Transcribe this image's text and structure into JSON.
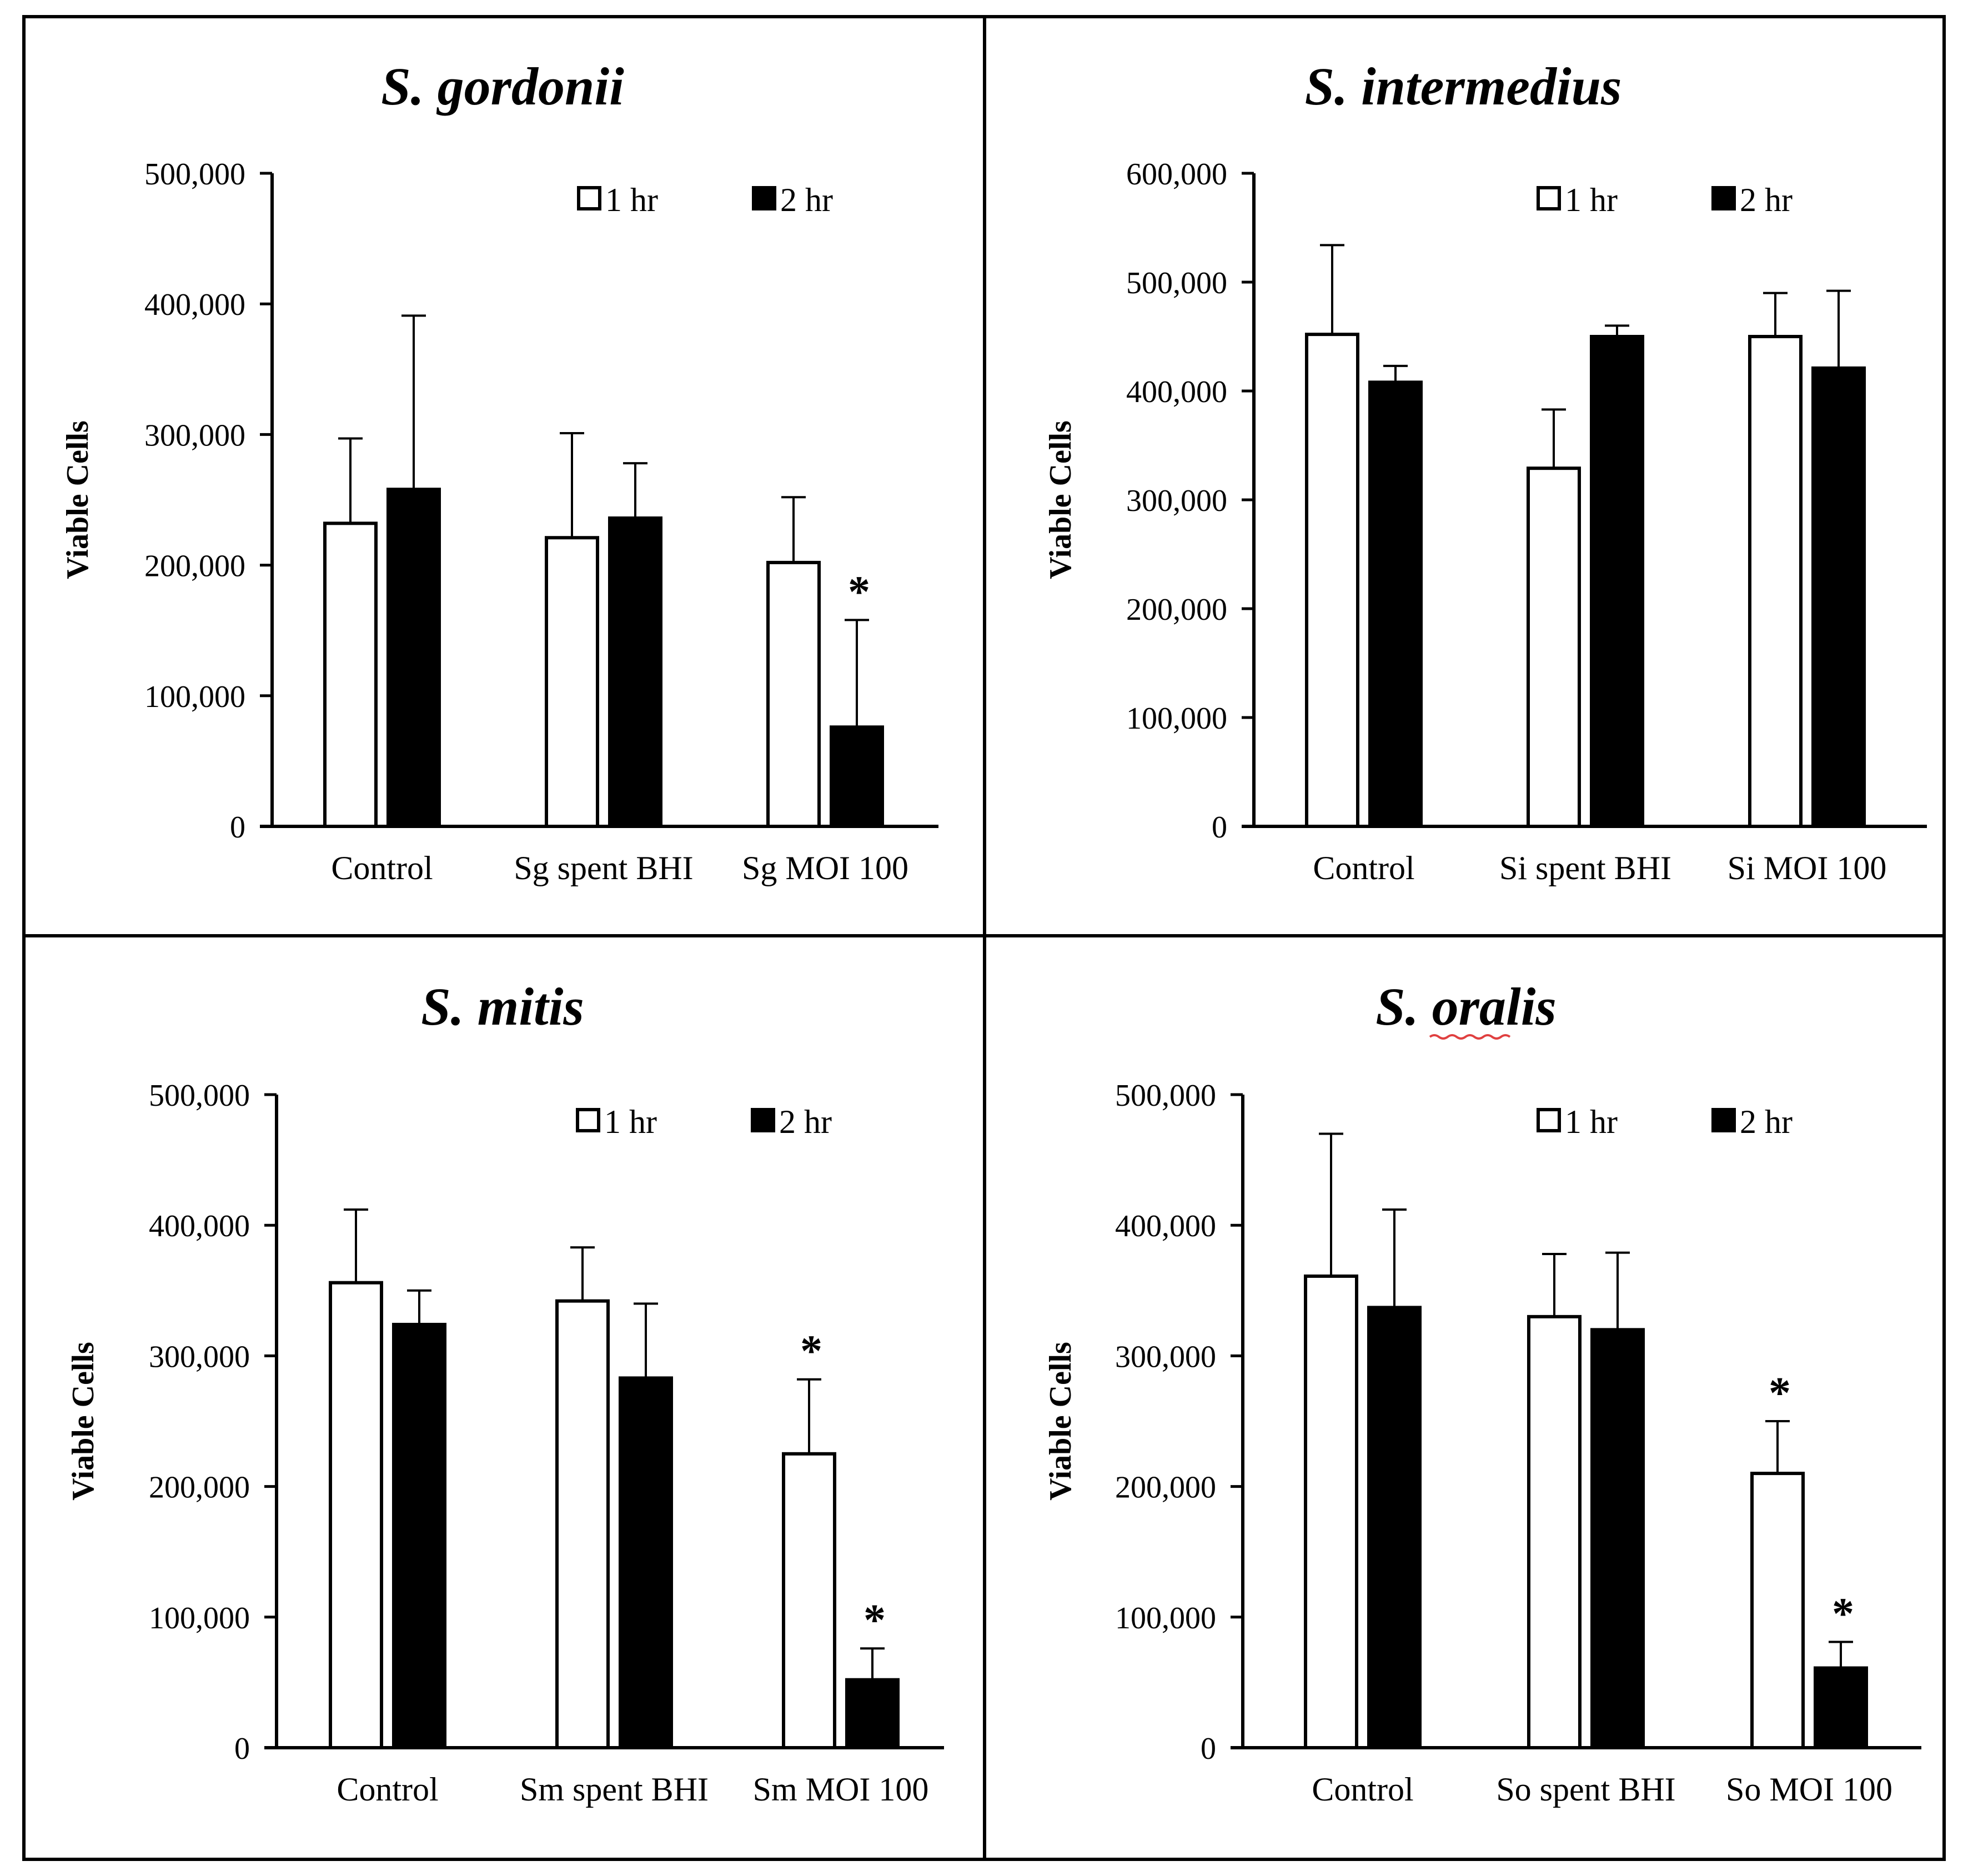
{
  "figure": {
    "background": "#ffffff",
    "line_color": "#000000",
    "colors": {
      "1 hr": "#ffffff",
      "2 hr": "#000000"
    }
  },
  "chart_data": [
    {
      "type": "bar",
      "title": "S. gordonii",
      "ylabel": "Viable Cells",
      "xlabel": "",
      "ylim": [
        0,
        500000
      ],
      "yticks": [
        0,
        100000,
        200000,
        300000,
        400000,
        500000
      ],
      "ytick_labels": [
        "0",
        "100,000",
        "200,000",
        "300,000",
        "400,000",
        "500,000"
      ],
      "grid": false,
      "legend_position": "top-right",
      "categories": [
        "Control",
        "Sg spent BHI",
        "Sg MOI 100"
      ],
      "series": [
        {
          "name": "1 hr",
          "values": [
            232000,
            221000,
            202000
          ],
          "errors": [
            65000,
            80000,
            50000
          ]
        },
        {
          "name": "2 hr",
          "values": [
            258000,
            236000,
            76000
          ],
          "errors": [
            133000,
            42000,
            82000
          ]
        }
      ],
      "significance": [
        {
          "series": "2 hr",
          "category": "Sg MOI 100",
          "label": "*"
        }
      ]
    },
    {
      "type": "bar",
      "title": "S. intermedius",
      "ylabel": "Viable Cells",
      "xlabel": "",
      "ylim": [
        0,
        600000
      ],
      "yticks": [
        0,
        100000,
        200000,
        300000,
        400000,
        500000,
        600000
      ],
      "ytick_labels": [
        "0",
        "100,000",
        "200,000",
        "300,000",
        "400,000",
        "500,000",
        "600,000"
      ],
      "grid": false,
      "legend_position": "top-right",
      "categories": [
        "Control",
        "Si spent BHI",
        "Si MOI 100"
      ],
      "series": [
        {
          "name": "1 hr",
          "values": [
            452000,
            329000,
            450000
          ],
          "errors": [
            82000,
            54000,
            40000
          ]
        },
        {
          "name": "2 hr",
          "values": [
            408000,
            450000,
            421000
          ],
          "errors": [
            15000,
            10000,
            71000
          ]
        }
      ],
      "significance": []
    },
    {
      "type": "bar",
      "title": "S. mitis",
      "ylabel": "Viable Cells",
      "xlabel": "",
      "ylim": [
        0,
        500000
      ],
      "yticks": [
        0,
        100000,
        200000,
        300000,
        400000,
        500000
      ],
      "ytick_labels": [
        "0",
        "100,000",
        "200,000",
        "300,000",
        "400,000",
        "500,000"
      ],
      "grid": false,
      "legend_position": "top-right",
      "categories": [
        "Control",
        "Sm spent BHI",
        "Sm MOI 100"
      ],
      "series": [
        {
          "name": "1 hr",
          "values": [
            356000,
            342000,
            225000
          ],
          "errors": [
            56000,
            41000,
            57000
          ]
        },
        {
          "name": "2 hr",
          "values": [
            324000,
            283000,
            52000
          ],
          "errors": [
            26000,
            57000,
            24000
          ]
        }
      ],
      "significance": [
        {
          "series": "1 hr",
          "category": "Sm MOI 100",
          "label": "*"
        },
        {
          "series": "2 hr",
          "category": "Sm MOI 100",
          "label": "*"
        }
      ]
    },
    {
      "type": "bar",
      "title": "S. oralis",
      "ylabel": "Viable Cells",
      "xlabel": "",
      "ylim": [
        0,
        500000
      ],
      "yticks": [
        0,
        100000,
        200000,
        300000,
        400000,
        500000
      ],
      "ytick_labels": [
        "0",
        "100,000",
        "200,000",
        "300,000",
        "400,000",
        "500,000"
      ],
      "grid": false,
      "legend_position": "top-right",
      "categories": [
        "Control",
        "So spent BHI",
        "So MOI 100"
      ],
      "series": [
        {
          "name": "1 hr",
          "values": [
            361000,
            330000,
            210000
          ],
          "errors": [
            109000,
            48000,
            40000
          ]
        },
        {
          "name": "2 hr",
          "values": [
            337000,
            320000,
            61000
          ],
          "errors": [
            75000,
            59000,
            20000
          ]
        }
      ],
      "significance": [
        {
          "series": "1 hr",
          "category": "So MOI 100",
          "label": "*"
        },
        {
          "series": "2 hr",
          "category": "So MOI 100",
          "label": "*"
        }
      ]
    }
  ]
}
